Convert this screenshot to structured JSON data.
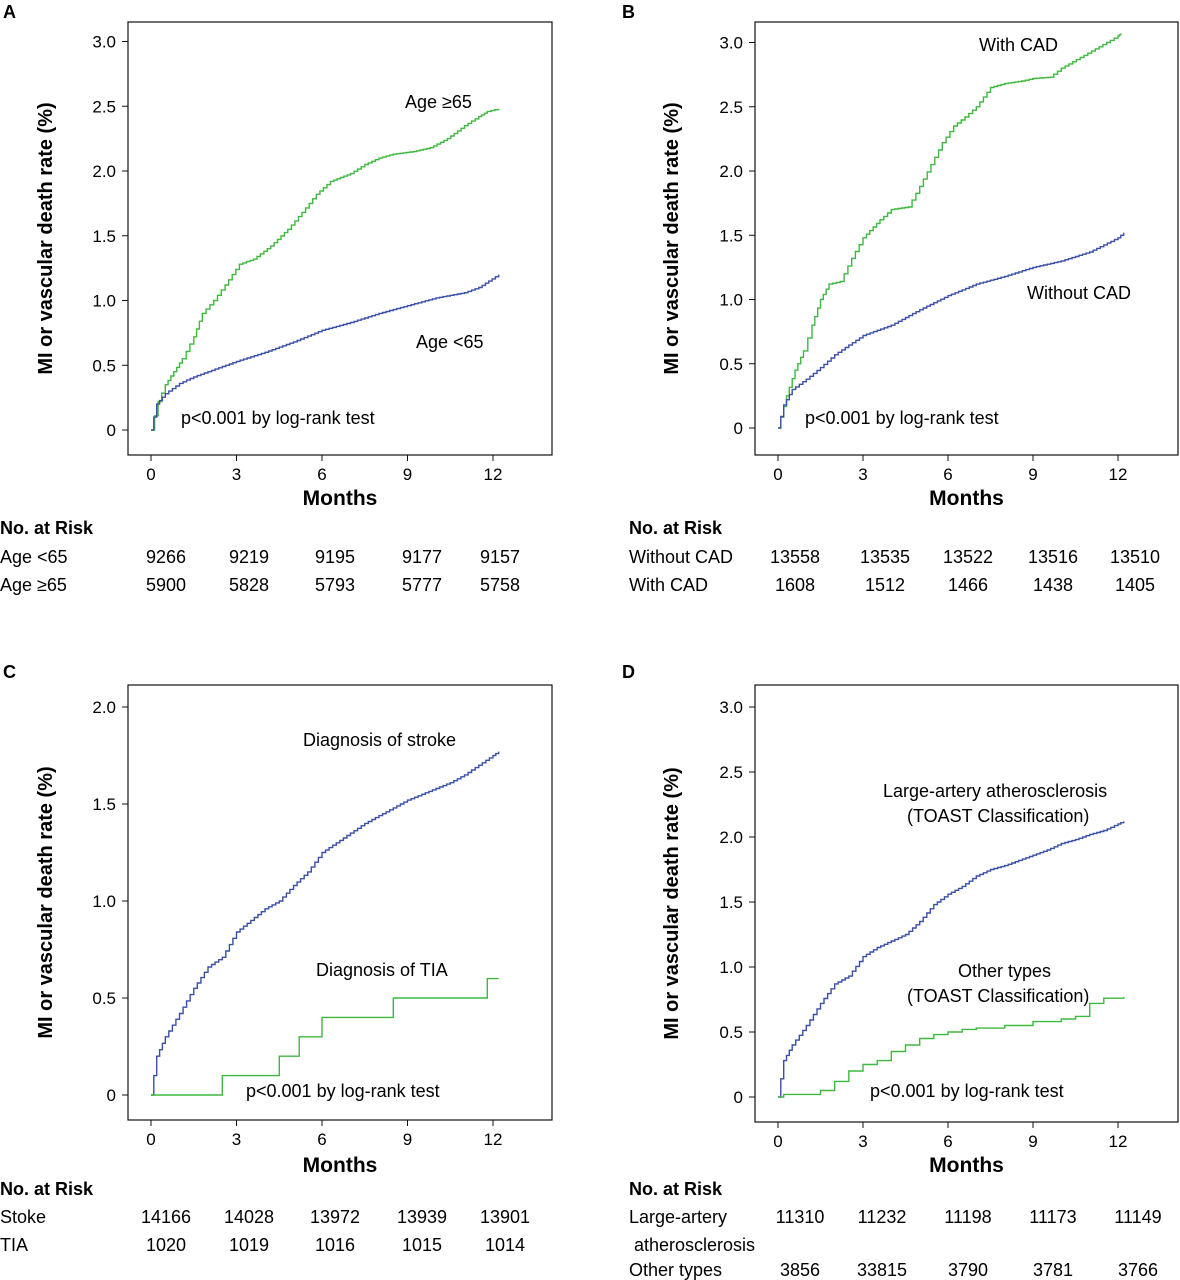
{
  "colors": {
    "green": "#3fb83f",
    "blue": "#3a4fa8",
    "axis": "#111111"
  },
  "chart_data": [
    {
      "type": "line",
      "panel": "A",
      "xlabel": "Months",
      "ylabel": "MI or vascular death rate (%)",
      "xticks": [
        "0",
        "3",
        "6",
        "9",
        "12"
      ],
      "yticks": [
        "0",
        "0.5",
        "1.0",
        "1.5",
        "2.0",
        "2.5",
        "3.0"
      ],
      "xlim": [
        -0.5,
        14.2
      ],
      "ylim": [
        -0.1,
        3.2
      ],
      "annotation": "p<0.001 by log-rank test",
      "series": [
        {
          "name": "Age ≥65",
          "color": "green",
          "step": 0.015,
          "x": [
            0,
            0.25,
            0.5,
            0.8,
            1.1,
            1.5,
            1.8,
            2.2,
            2.6,
            3.1,
            3.6,
            4.2,
            4.8,
            5.3,
            5.8,
            6.3,
            7.0,
            7.5,
            8.0,
            8.5,
            9.2,
            9.8,
            10.4,
            11.0,
            11.5,
            11.8,
            12.2
          ],
          "y": [
            0,
            0.22,
            0.35,
            0.45,
            0.55,
            0.72,
            0.9,
            1.0,
            1.12,
            1.28,
            1.32,
            1.42,
            1.55,
            1.68,
            1.82,
            1.92,
            1.98,
            2.05,
            2.1,
            2.13,
            2.15,
            2.18,
            2.25,
            2.35,
            2.42,
            2.46,
            2.48
          ]
        },
        {
          "name": "Age <65",
          "color": "blue",
          "step": 0.01,
          "x": [
            0,
            0.2,
            0.5,
            1.0,
            1.5,
            2.0,
            3.0,
            4.0,
            5.0,
            6.0,
            7.0,
            8.0,
            9.0,
            10.0,
            11.0,
            11.5,
            12.2
          ],
          "y": [
            0,
            0.2,
            0.28,
            0.36,
            0.41,
            0.45,
            0.53,
            0.6,
            0.68,
            0.77,
            0.83,
            0.9,
            0.96,
            1.02,
            1.06,
            1.1,
            1.2
          ]
        }
      ],
      "labels": [
        "Age ≥65",
        "Age <65"
      ]
    },
    {
      "type": "line",
      "panel": "B",
      "xlabel": "Months",
      "ylabel": "MI or vascular death rate (%)",
      "xticks": [
        "0",
        "3",
        "6",
        "9",
        "12"
      ],
      "yticks": [
        "0",
        "0.5",
        "1.0",
        "1.5",
        "2.0",
        "2.5",
        "3.0"
      ],
      "xlim": [
        -0.5,
        14.2
      ],
      "ylim": [
        -0.1,
        3.2
      ],
      "annotation": "p<0.001 by log-rank test",
      "series": [
        {
          "name": "With CAD",
          "color": "green",
          "step": 0.06,
          "x": [
            0,
            0.3,
            0.6,
            0.9,
            1.2,
            1.5,
            1.8,
            2.2,
            2.6,
            3.0,
            3.6,
            4.0,
            4.6,
            5.0,
            5.4,
            5.8,
            6.2,
            6.6,
            7.0,
            7.5,
            8.0,
            8.6,
            9.0,
            9.6,
            10.0,
            10.4,
            10.8,
            11.2,
            11.6,
            12.0,
            12.1
          ],
          "y": [
            0,
            0.25,
            0.45,
            0.6,
            0.8,
            1.0,
            1.12,
            1.14,
            1.32,
            1.48,
            1.62,
            1.7,
            1.72,
            1.88,
            2.05,
            2.22,
            2.35,
            2.42,
            2.5,
            2.65,
            2.68,
            2.7,
            2.72,
            2.73,
            2.8,
            2.85,
            2.9,
            2.95,
            3.0,
            3.05,
            3.07
          ]
        },
        {
          "name": "Without CAD",
          "color": "blue",
          "step": 0.01,
          "x": [
            0,
            0.2,
            0.5,
            1.0,
            1.5,
            2.0,
            3.0,
            4.0,
            5.0,
            6.0,
            7.0,
            8.0,
            9.0,
            10.0,
            11.0,
            12.0,
            12.2
          ],
          "y": [
            0,
            0.18,
            0.3,
            0.38,
            0.47,
            0.57,
            0.72,
            0.8,
            0.92,
            1.03,
            1.12,
            1.18,
            1.25,
            1.3,
            1.37,
            1.48,
            1.52
          ]
        }
      ],
      "labels": [
        "With CAD",
        "Without CAD"
      ]
    },
    {
      "type": "line",
      "panel": "C",
      "xlabel": "Months",
      "ylabel": "MI or vascular death rate (%)",
      "xticks": [
        "0",
        "3",
        "6",
        "9",
        "12"
      ],
      "yticks": [
        "0",
        "0.5",
        "1.0",
        "1.5",
        "2.0"
      ],
      "xlim": [
        -0.5,
        14.2
      ],
      "ylim": [
        -0.1,
        2.1
      ],
      "annotation": "p<0.001 by log-rank test",
      "series": [
        {
          "name": "Diagnosis of stroke",
          "color": "blue",
          "step": 0.01,
          "x": [
            0,
            0.2,
            0.5,
            1.0,
            1.5,
            2.0,
            2.5,
            3.0,
            3.5,
            4.0,
            4.5,
            5.0,
            5.5,
            6.0,
            6.5,
            7.0,
            7.5,
            8.0,
            8.5,
            9.0,
            9.5,
            10.0,
            10.5,
            11.0,
            11.5,
            12.0,
            12.2
          ],
          "y": [
            0,
            0.2,
            0.3,
            0.42,
            0.55,
            0.66,
            0.71,
            0.84,
            0.9,
            0.96,
            1.0,
            1.08,
            1.15,
            1.25,
            1.3,
            1.35,
            1.4,
            1.44,
            1.48,
            1.52,
            1.55,
            1.58,
            1.61,
            1.65,
            1.7,
            1.75,
            1.77
          ]
        },
        {
          "name": "Diagnosis of TIA",
          "color": "green",
          "step": 0,
          "x": [
            0,
            2.5,
            4.5,
            5.2,
            6.0,
            8.5,
            11.8,
            12.2
          ],
          "y": [
            0,
            0.1,
            0.2,
            0.3,
            0.4,
            0.5,
            0.6,
            0.6
          ]
        }
      ],
      "labels": [
        "Diagnosis of stroke",
        "Diagnosis of TIA"
      ]
    },
    {
      "type": "line",
      "panel": "D",
      "xlabel": "Months",
      "ylabel": "MI or vascular death rate (%)",
      "xticks": [
        "0",
        "3",
        "6",
        "9",
        "12"
      ],
      "yticks": [
        "0",
        "0.5",
        "1.0",
        "1.5",
        "2.0",
        "2.5",
        "3.0"
      ],
      "xlim": [
        -0.5,
        14.2
      ],
      "ylim": [
        -0.1,
        3.2
      ],
      "annotation": "p<0.001 by log-rank test",
      "series": [
        {
          "name": "Large-artery atherosclerosis",
          "color": "blue",
          "step": 0.012,
          "x": [
            0,
            0.2,
            0.5,
            1.0,
            1.5,
            2.0,
            2.5,
            3.0,
            3.5,
            4.0,
            4.5,
            5.0,
            5.5,
            6.0,
            6.5,
            7.0,
            7.5,
            8.0,
            8.5,
            9.0,
            9.5,
            10.0,
            10.5,
            11.0,
            11.5,
            12.0,
            12.2
          ],
          "y": [
            0,
            0.28,
            0.4,
            0.55,
            0.72,
            0.87,
            0.93,
            1.08,
            1.15,
            1.2,
            1.25,
            1.35,
            1.48,
            1.56,
            1.62,
            1.7,
            1.75,
            1.78,
            1.82,
            1.86,
            1.9,
            1.95,
            1.98,
            2.02,
            2.05,
            2.1,
            2.12
          ]
        },
        {
          "name": "Other types",
          "color": "green",
          "step": 0,
          "x": [
            0,
            0.2,
            1.5,
            2.0,
            2.5,
            3.0,
            3.5,
            4.0,
            4.5,
            5.0,
            5.5,
            6.0,
            6.5,
            7.0,
            8.0,
            9.0,
            10.0,
            10.5,
            11.0,
            11.5,
            12.2
          ],
          "y": [
            0,
            0.02,
            0.05,
            0.12,
            0.2,
            0.25,
            0.28,
            0.35,
            0.4,
            0.45,
            0.48,
            0.5,
            0.52,
            0.53,
            0.55,
            0.58,
            0.6,
            0.62,
            0.72,
            0.76,
            0.77
          ]
        }
      ],
      "labels": [
        "Large-artery atherosclerosis",
        "(TOAST Classification)",
        "Other types",
        "(TOAST Classification)"
      ]
    }
  ],
  "risk_tables": [
    {
      "title": "No. at Risk",
      "rows": [
        {
          "label": "Age <65",
          "values": [
            "9266",
            "9219",
            "9195",
            "9177",
            "9157"
          ]
        },
        {
          "label": "Age ≥65",
          "values": [
            "5900",
            "5828",
            "5793",
            "5777",
            "5758"
          ]
        }
      ]
    },
    {
      "title": "No. at Risk",
      "rows": [
        {
          "label": "Without CAD",
          "values": [
            "13558",
            "13535",
            "13522",
            "13516",
            "13510"
          ]
        },
        {
          "label": "With CAD",
          "values": [
            "1608",
            "1512",
            "1466",
            "1438",
            "1405"
          ]
        }
      ]
    },
    {
      "title": "No. at Risk",
      "rows": [
        {
          "label": "Stoke",
          "values": [
            "14166",
            "14028",
            "13972",
            "13939",
            "13901"
          ]
        },
        {
          "label": "TIA",
          "values": [
            "1020",
            "1019",
            "1016",
            "1015",
            "1014"
          ]
        }
      ]
    },
    {
      "title": "No. at Risk",
      "rows": [
        {
          "label": "Large-artery",
          "values": [
            "11310",
            "11232",
            "11198",
            "11173",
            "11149"
          ]
        },
        {
          "label": "atherosclerosis",
          "values": []
        },
        {
          "label": "Other types",
          "values": [
            "3856",
            "33815",
            "3790",
            "3781",
            "3766"
          ]
        }
      ]
    }
  ]
}
